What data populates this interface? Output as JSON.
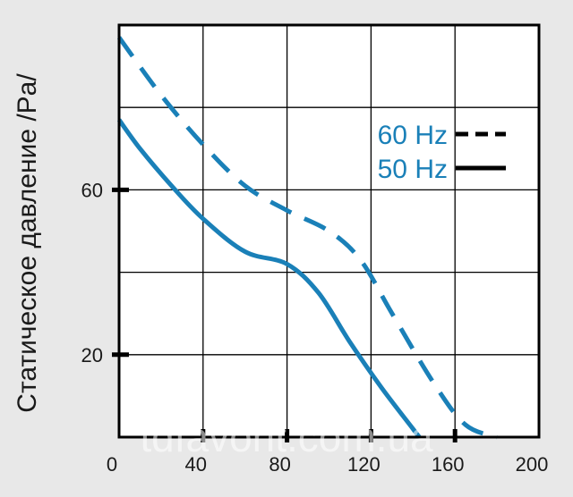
{
  "chart_data": {
    "type": "line",
    "title": "",
    "xlabel": "",
    "ylabel": "Статическое давление /Pa/",
    "xlim": [
      0,
      200
    ],
    "ylim": [
      0,
      100
    ],
    "x_ticks": [
      "0",
      "40",
      "80",
      "120",
      "160",
      "200"
    ],
    "x_tick_values": [
      0,
      40,
      80,
      120,
      160,
      200
    ],
    "y_ticks": [
      "20",
      "60"
    ],
    "y_tick_values": [
      20,
      60
    ],
    "grid": true,
    "legend_position": "top-right",
    "series": [
      {
        "name": "60 Hz",
        "style": "dashed",
        "color": "#1a80b8",
        "points": [
          [
            0,
            97
          ],
          [
            20,
            83
          ],
          [
            40,
            71
          ],
          [
            60,
            61
          ],
          [
            80,
            55
          ],
          [
            100,
            50
          ],
          [
            115,
            43
          ],
          [
            130,
            30
          ],
          [
            150,
            13
          ],
          [
            165,
            3
          ],
          [
            180,
            0
          ]
        ]
      },
      {
        "name": "50 Hz",
        "style": "solid",
        "color": "#1a80b8",
        "points": [
          [
            0,
            77
          ],
          [
            10,
            70
          ],
          [
            25,
            61
          ],
          [
            40,
            53
          ],
          [
            60,
            45
          ],
          [
            80,
            42
          ],
          [
            95,
            35
          ],
          [
            110,
            23
          ],
          [
            125,
            12
          ],
          [
            140,
            2
          ],
          [
            143,
            0
          ]
        ]
      }
    ],
    "watermark": "tdfavorit.com.ua"
  },
  "colors": {
    "background": "#e8e8e8",
    "plot_area": "#ffffff",
    "frame": "#000000",
    "series": "#1a80b8",
    "legend_line": "#000000"
  }
}
